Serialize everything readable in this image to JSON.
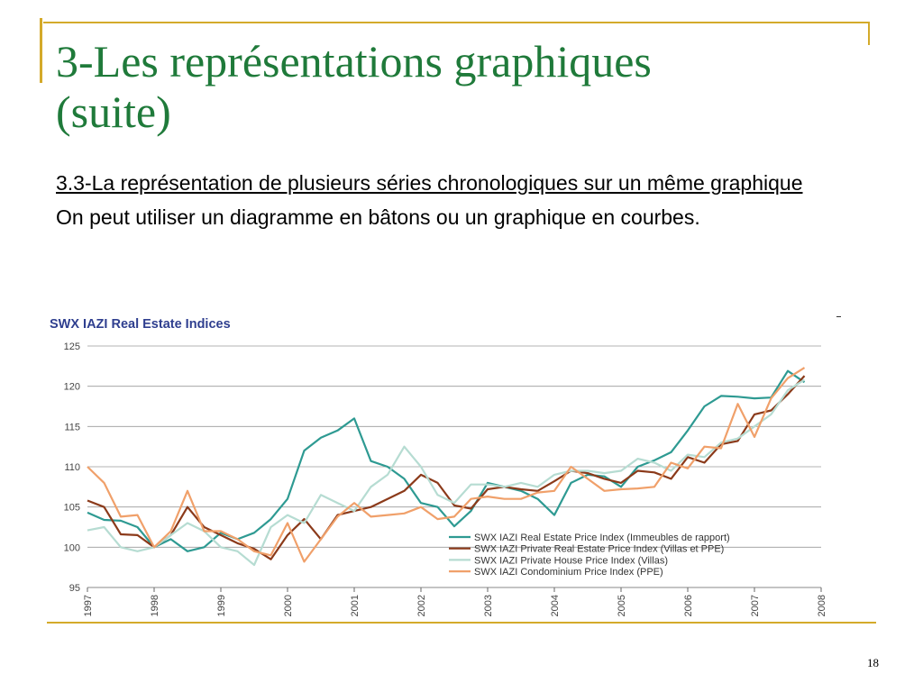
{
  "slide": {
    "title_line1": "3-Les représentations graphiques",
    "title_line2": "(suite)",
    "subtitle": "3.3-La représentation de plusieurs séries chronologiques sur un même graphique",
    "paragraph": "On peut utiliser un diagramme en bâtons ou un graphique en courbes.",
    "page_number": "18",
    "accent_color": "#d4aa2a",
    "title_color": "#1f7a3a"
  },
  "chart_data": {
    "type": "line",
    "title": "SWX IAZI Real Estate Indices",
    "xlabel": "",
    "ylabel": "",
    "xlim": [
      1997,
      2008
    ],
    "ylim": [
      95,
      125
    ],
    "x_ticks": [
      "1997",
      "1998",
      "1999",
      "2000",
      "2001",
      "2002",
      "2003",
      "2004",
      "2005",
      "2006",
      "2007",
      "2008"
    ],
    "y_ticks": [
      95,
      100,
      105,
      110,
      115,
      120,
      125
    ],
    "grid": "horizontal",
    "legend_position": "bottom-right",
    "series": [
      {
        "name": "SWX IAZI Real Estate Price Index (Immeubles de rapport)",
        "color": "#2e9a92",
        "points": [
          [
            1997.0,
            104.3
          ],
          [
            1997.25,
            103.4
          ],
          [
            1997.5,
            103.3
          ],
          [
            1997.75,
            102.5
          ],
          [
            1998.0,
            100.0
          ],
          [
            1998.25,
            101.0
          ],
          [
            1998.5,
            99.5
          ],
          [
            1998.75,
            100.0
          ],
          [
            1999.0,
            101.8
          ],
          [
            1999.25,
            101.0
          ],
          [
            1999.5,
            101.8
          ],
          [
            1999.75,
            103.5
          ],
          [
            2000.0,
            106.0
          ],
          [
            2000.25,
            112.0
          ],
          [
            2000.5,
            113.6
          ],
          [
            2000.75,
            114.5
          ],
          [
            2001.0,
            116.0
          ],
          [
            2001.25,
            110.7
          ],
          [
            2001.5,
            110.0
          ],
          [
            2001.75,
            108.5
          ],
          [
            2002.0,
            105.5
          ],
          [
            2002.25,
            105.0
          ],
          [
            2002.5,
            102.6
          ],
          [
            2002.75,
            104.5
          ],
          [
            2003.0,
            108.0
          ],
          [
            2003.25,
            107.5
          ],
          [
            2003.5,
            107.0
          ],
          [
            2003.75,
            106.0
          ],
          [
            2004.0,
            104.0
          ],
          [
            2004.25,
            108.0
          ],
          [
            2004.5,
            109.0
          ],
          [
            2004.75,
            108.8
          ],
          [
            2005.0,
            107.5
          ],
          [
            2005.25,
            110.0
          ],
          [
            2005.5,
            110.8
          ],
          [
            2005.75,
            111.8
          ],
          [
            2006.0,
            114.5
          ],
          [
            2006.25,
            117.5
          ],
          [
            2006.5,
            118.8
          ],
          [
            2006.75,
            118.7
          ],
          [
            2007.0,
            118.5
          ],
          [
            2007.25,
            118.6
          ],
          [
            2007.5,
            121.9
          ],
          [
            2007.75,
            120.5
          ]
        ]
      },
      {
        "name": "SWX IAZI Private Real Estate Price Index (Villas et PPE)",
        "color": "#8b3a1a",
        "points": [
          [
            1997.0,
            105.8
          ],
          [
            1997.25,
            105.0
          ],
          [
            1997.5,
            101.6
          ],
          [
            1997.75,
            101.5
          ],
          [
            1998.0,
            100.0
          ],
          [
            1998.25,
            101.5
          ],
          [
            1998.5,
            105.0
          ],
          [
            1998.75,
            102.5
          ],
          [
            1999.0,
            101.5
          ],
          [
            1999.25,
            100.5
          ],
          [
            1999.5,
            99.8
          ],
          [
            1999.75,
            98.5
          ],
          [
            2000.0,
            101.5
          ],
          [
            2000.25,
            103.5
          ],
          [
            2000.5,
            101.0
          ],
          [
            2000.75,
            104.0
          ],
          [
            2001.0,
            104.5
          ],
          [
            2001.25,
            105.0
          ],
          [
            2001.5,
            106.0
          ],
          [
            2001.75,
            107.0
          ],
          [
            2002.0,
            109.0
          ],
          [
            2002.25,
            108.0
          ],
          [
            2002.5,
            105.2
          ],
          [
            2002.75,
            104.8
          ],
          [
            2003.0,
            107.2
          ],
          [
            2003.25,
            107.5
          ],
          [
            2003.5,
            107.2
          ],
          [
            2003.75,
            107.0
          ],
          [
            2004.0,
            108.2
          ],
          [
            2004.25,
            109.5
          ],
          [
            2004.5,
            109.2
          ],
          [
            2004.75,
            108.5
          ],
          [
            2005.0,
            108.0
          ],
          [
            2005.25,
            109.5
          ],
          [
            2005.5,
            109.3
          ],
          [
            2005.75,
            108.5
          ],
          [
            2006.0,
            111.2
          ],
          [
            2006.25,
            110.5
          ],
          [
            2006.5,
            112.8
          ],
          [
            2006.75,
            113.2
          ],
          [
            2007.0,
            116.5
          ],
          [
            2007.25,
            117.0
          ],
          [
            2007.5,
            119.0
          ],
          [
            2007.75,
            121.3
          ]
        ]
      },
      {
        "name": "SWX IAZI Private House Price Index (Villas)",
        "color": "#b6dcd2",
        "points": [
          [
            1997.0,
            102.1
          ],
          [
            1997.25,
            102.5
          ],
          [
            1997.5,
            100.0
          ],
          [
            1997.75,
            99.5
          ],
          [
            1998.0,
            100.0
          ],
          [
            1998.25,
            101.5
          ],
          [
            1998.5,
            103.0
          ],
          [
            1998.75,
            102.0
          ],
          [
            1999.0,
            100.0
          ],
          [
            1999.25,
            99.5
          ],
          [
            1999.5,
            97.8
          ],
          [
            1999.75,
            102.5
          ],
          [
            2000.0,
            104.0
          ],
          [
            2000.25,
            103.0
          ],
          [
            2000.5,
            106.5
          ],
          [
            2000.75,
            105.5
          ],
          [
            2001.0,
            104.5
          ],
          [
            2001.25,
            107.5
          ],
          [
            2001.5,
            109.0
          ],
          [
            2001.75,
            112.5
          ],
          [
            2002.0,
            110.0
          ],
          [
            2002.25,
            106.5
          ],
          [
            2002.5,
            105.5
          ],
          [
            2002.75,
            107.8
          ],
          [
            2003.0,
            107.8
          ],
          [
            2003.25,
            107.5
          ],
          [
            2003.5,
            108.0
          ],
          [
            2003.75,
            107.5
          ],
          [
            2004.0,
            109.0
          ],
          [
            2004.25,
            109.5
          ],
          [
            2004.5,
            109.5
          ],
          [
            2004.75,
            109.2
          ],
          [
            2005.0,
            109.5
          ],
          [
            2005.25,
            111.0
          ],
          [
            2005.5,
            110.5
          ],
          [
            2005.75,
            109.5
          ],
          [
            2006.0,
            111.5
          ],
          [
            2006.25,
            111.2
          ],
          [
            2006.5,
            113.0
          ],
          [
            2006.75,
            113.5
          ],
          [
            2007.0,
            115.0
          ],
          [
            2007.25,
            116.5
          ],
          [
            2007.5,
            119.5
          ],
          [
            2007.75,
            120.8
          ]
        ]
      },
      {
        "name": "SWX IAZI Condominium Price Index (PPE)",
        "color": "#f0a06a",
        "points": [
          [
            1997.0,
            110.0
          ],
          [
            1997.25,
            108.0
          ],
          [
            1997.5,
            103.8
          ],
          [
            1997.75,
            104.0
          ],
          [
            1998.0,
            100.0
          ],
          [
            1998.25,
            102.0
          ],
          [
            1998.5,
            107.0
          ],
          [
            1998.75,
            102.0
          ],
          [
            1999.0,
            102.0
          ],
          [
            1999.25,
            101.0
          ],
          [
            1999.5,
            99.5
          ],
          [
            1999.75,
            99.0
          ],
          [
            2000.0,
            103.0
          ],
          [
            2000.25,
            98.2
          ],
          [
            2000.5,
            101.0
          ],
          [
            2000.75,
            103.8
          ],
          [
            2001.0,
            105.5
          ],
          [
            2001.25,
            103.8
          ],
          [
            2001.5,
            104.0
          ],
          [
            2001.75,
            104.2
          ],
          [
            2002.0,
            105.0
          ],
          [
            2002.25,
            103.5
          ],
          [
            2002.5,
            103.8
          ],
          [
            2002.75,
            106.0
          ],
          [
            2003.0,
            106.3
          ],
          [
            2003.25,
            106.0
          ],
          [
            2003.5,
            106.0
          ],
          [
            2003.75,
            106.8
          ],
          [
            2004.0,
            107.0
          ],
          [
            2004.25,
            110.0
          ],
          [
            2004.5,
            108.5
          ],
          [
            2004.75,
            107.0
          ],
          [
            2005.0,
            107.2
          ],
          [
            2005.25,
            107.3
          ],
          [
            2005.5,
            107.5
          ],
          [
            2005.75,
            110.5
          ],
          [
            2006.0,
            109.8
          ],
          [
            2006.25,
            112.5
          ],
          [
            2006.5,
            112.3
          ],
          [
            2006.75,
            117.8
          ],
          [
            2007.0,
            113.7
          ],
          [
            2007.25,
            118.5
          ],
          [
            2007.5,
            121.0
          ],
          [
            2007.75,
            122.3
          ]
        ]
      }
    ]
  }
}
